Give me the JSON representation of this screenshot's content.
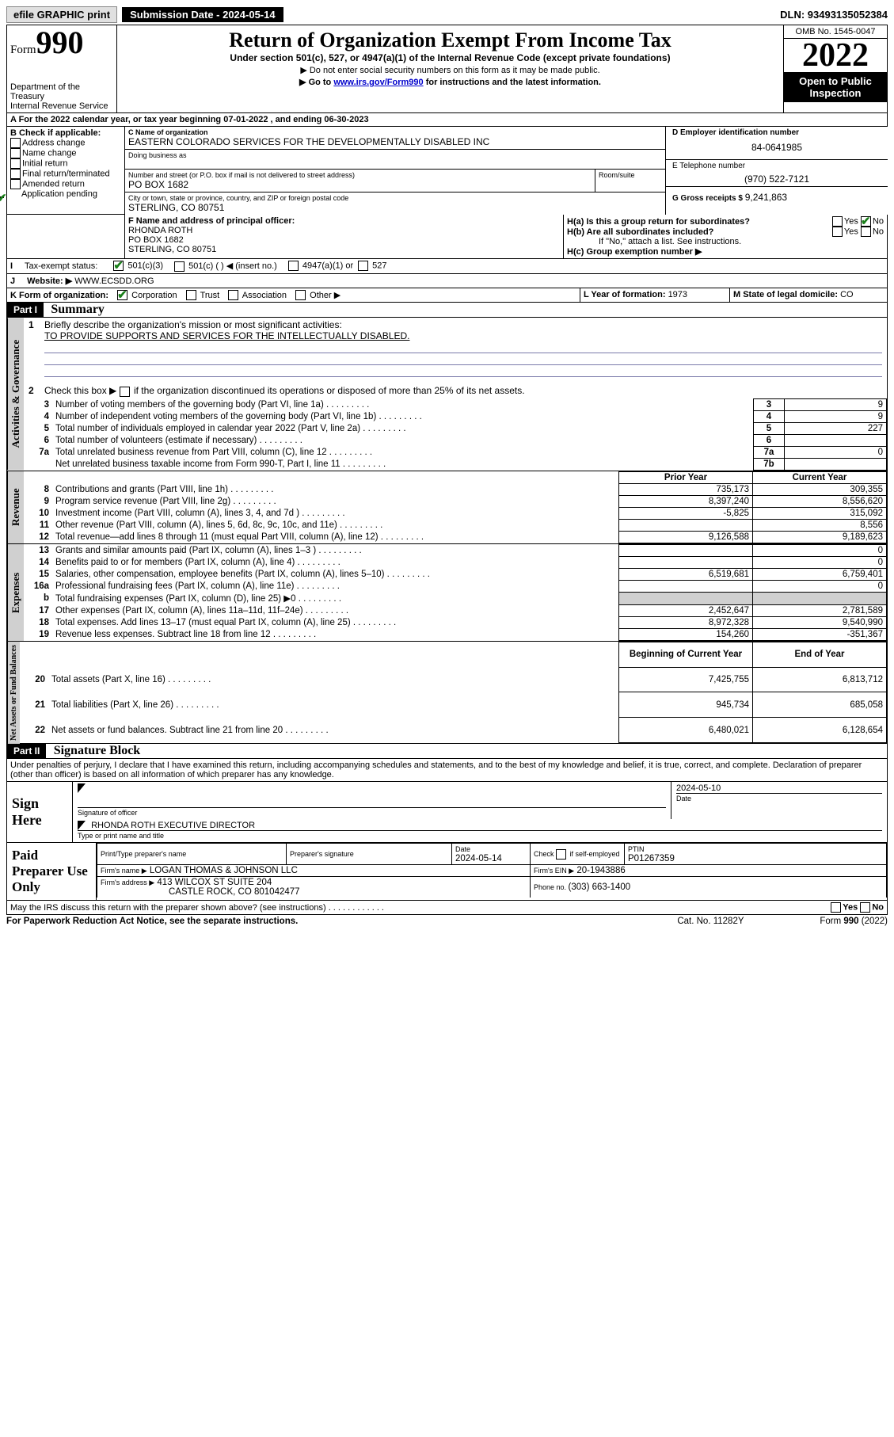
{
  "topbar": {
    "efile_label": "efile GRAPHIC print",
    "submission_label": "Submission Date - 2024-05-14",
    "dln_label": "DLN: 93493135052384"
  },
  "header": {
    "form_prefix": "Form",
    "form_number": "990",
    "title": "Return of Organization Exempt From Income Tax",
    "subtitle": "Under section 501(c), 527, or 4947(a)(1) of the Internal Revenue Code (except private foundations)",
    "note1": "▶ Do not enter social security numbers on this form as it may be made public.",
    "note2_pre": "▶ Go to ",
    "note2_link": "www.irs.gov/Form990",
    "note2_post": " for instructions and the latest information.",
    "dept": "Department of the Treasury",
    "irs": "Internal Revenue Service",
    "omb": "OMB No. 1545-0047",
    "year": "2022",
    "open": "Open to Public Inspection"
  },
  "A": {
    "label": "A For the 2022 calendar year, or tax year beginning ",
    "begin": "07-01-2022",
    "mid": " , and ending ",
    "end": "06-30-2023"
  },
  "B": {
    "label": "B Check if applicable:",
    "addr": "Address change",
    "name": "Name change",
    "init": "Initial return",
    "final": "Final return/terminated",
    "amend": "Amended return",
    "app": "Application pending"
  },
  "C": {
    "name_label": "C Name of organization",
    "name": "EASTERN COLORADO SERVICES FOR THE DEVELOPMENTALLY DISABLED INC",
    "dba_label": "Doing business as",
    "street_label": "Number and street (or P.O. box if mail is not delivered to street address)",
    "room_label": "Room/suite",
    "street": "PO BOX 1682",
    "city_label": "City or town, state or province, country, and ZIP or foreign postal code",
    "city": "STERLING, CO  80751"
  },
  "D": {
    "label": "D Employer identification number",
    "value": "84-0641985"
  },
  "E": {
    "label": "E Telephone number",
    "value": "(970) 522-7121"
  },
  "G": {
    "label": "G Gross receipts $ ",
    "value": "9,241,863"
  },
  "F": {
    "label": "F Name and address of principal officer:",
    "name": "RHONDA ROTH",
    "addr1": "PO BOX 1682",
    "addr2": "STERLING, CO  80751"
  },
  "H": {
    "a": "H(a)  Is this a group return for subordinates?",
    "b": "H(b)  Are all subordinates included?",
    "note": "If \"No,\" attach a list. See instructions.",
    "c": "H(c)  Group exemption number ▶",
    "yes": "Yes",
    "no": "No"
  },
  "I": {
    "label": "I",
    "text": "Tax-exempt status:",
    "c3": "501(c)(3)",
    "c": "501(c) (   ) ◀ (insert no.)",
    "a1": "4947(a)(1) or",
    "s527": "527"
  },
  "J": {
    "label": "J",
    "text": "Website: ▶",
    "value": "WWW.ECSDD.ORG"
  },
  "K": {
    "label": "K Form of organization:",
    "corp": "Corporation",
    "trust": "Trust",
    "assoc": "Association",
    "other": "Other ▶"
  },
  "L": {
    "label": "L Year of formation: ",
    "value": "1973"
  },
  "M": {
    "label": "M State of legal domicile: ",
    "value": "CO"
  },
  "part1": {
    "hdr": "Part I",
    "title": "Summary"
  },
  "summary": {
    "q1": "Briefly describe the organization's mission or most significant activities:",
    "mission": "TO PROVIDE SUPPORTS AND SERVICES FOR THE INTELLECTUALLY DISABLED.",
    "q2": "Check this box ▶        if the organization discontinued its operations or disposed of more than 25% of its net assets.",
    "rows_gov": [
      {
        "n": "3",
        "t": "Number of voting members of the governing body (Part VI, line 1a)",
        "box": "3",
        "v": "9"
      },
      {
        "n": "4",
        "t": "Number of independent voting members of the governing body (Part VI, line 1b)",
        "box": "4",
        "v": "9"
      },
      {
        "n": "5",
        "t": "Total number of individuals employed in calendar year 2022 (Part V, line 2a)",
        "box": "5",
        "v": "227"
      },
      {
        "n": "6",
        "t": "Total number of volunteers (estimate if necessary)",
        "box": "6",
        "v": ""
      },
      {
        "n": "7a",
        "t": "Total unrelated business revenue from Part VIII, column (C), line 12",
        "box": "7a",
        "v": "0"
      },
      {
        "n": "",
        "t": "Net unrelated business taxable income from Form 990-T, Part I, line 11",
        "box": "7b",
        "v": ""
      }
    ],
    "col_prior": "Prior Year",
    "col_current": "Current Year",
    "rev": [
      {
        "n": "8",
        "t": "Contributions and grants (Part VIII, line 1h)",
        "p": "735,173",
        "c": "309,355"
      },
      {
        "n": "9",
        "t": "Program service revenue (Part VIII, line 2g)",
        "p": "8,397,240",
        "c": "8,556,620"
      },
      {
        "n": "10",
        "t": "Investment income (Part VIII, column (A), lines 3, 4, and 7d )",
        "p": "-5,825",
        "c": "315,092"
      },
      {
        "n": "11",
        "t": "Other revenue (Part VIII, column (A), lines 5, 6d, 8c, 9c, 10c, and 11e)",
        "p": "",
        "c": "8,556"
      },
      {
        "n": "12",
        "t": "Total revenue—add lines 8 through 11 (must equal Part VIII, column (A), line 12)",
        "p": "9,126,588",
        "c": "9,189,623"
      }
    ],
    "exp": [
      {
        "n": "13",
        "t": "Grants and similar amounts paid (Part IX, column (A), lines 1–3 )",
        "p": "",
        "c": "0"
      },
      {
        "n": "14",
        "t": "Benefits paid to or for members (Part IX, column (A), line 4)",
        "p": "",
        "c": "0"
      },
      {
        "n": "15",
        "t": "Salaries, other compensation, employee benefits (Part IX, column (A), lines 5–10)",
        "p": "6,519,681",
        "c": "6,759,401"
      },
      {
        "n": "16a",
        "t": "Professional fundraising fees (Part IX, column (A), line 11e)",
        "p": "",
        "c": "0"
      },
      {
        "n": "b",
        "t": "Total fundraising expenses (Part IX, column (D), line 25) ▶0",
        "p": "GRAY",
        "c": "GRAY"
      },
      {
        "n": "17",
        "t": "Other expenses (Part IX, column (A), lines 11a–11d, 11f–24e)",
        "p": "2,452,647",
        "c": "2,781,589"
      },
      {
        "n": "18",
        "t": "Total expenses. Add lines 13–17 (must equal Part IX, column (A), line 25)",
        "p": "8,972,328",
        "c": "9,540,990"
      },
      {
        "n": "19",
        "t": "Revenue less expenses. Subtract line 18 from line 12",
        "p": "154,260",
        "c": "-351,367"
      }
    ],
    "col_begin": "Beginning of Current Year",
    "col_end": "End of Year",
    "net": [
      {
        "n": "20",
        "t": "Total assets (Part X, line 16)",
        "p": "7,425,755",
        "c": "6,813,712"
      },
      {
        "n": "21",
        "t": "Total liabilities (Part X, line 26)",
        "p": "945,734",
        "c": "685,058"
      },
      {
        "n": "22",
        "t": "Net assets or fund balances. Subtract line 21 from line 20",
        "p": "6,480,021",
        "c": "6,128,654"
      }
    ],
    "vlabels": {
      "gov": "Activities & Governance",
      "rev": "Revenue",
      "exp": "Expenses",
      "net": "Net Assets or Fund Balances"
    }
  },
  "part2": {
    "hdr": "Part II",
    "title": "Signature Block"
  },
  "sig": {
    "decl": "Under penalties of perjury, I declare that I have examined this return, including accompanying schedules and statements, and to the best of my knowledge and belief, it is true, correct, and complete. Declaration of preparer (other than officer) is based on all information of which preparer has any knowledge.",
    "sign_here": "Sign Here",
    "sig_officer": "Signature of officer",
    "date": "Date",
    "date_val": "2024-05-10",
    "name_title": "RHONDA ROTH  EXECUTIVE DIRECTOR",
    "type_label": "Type or print name and title",
    "paid": "Paid Preparer Use Only",
    "prep_name_lbl": "Print/Type preparer's name",
    "prep_sig_lbl": "Preparer's signature",
    "prep_date_lbl": "Date",
    "prep_date": "2024-05-14",
    "check": "Check         if self-employed",
    "ptin_lbl": "PTIN",
    "ptin": "P01267359",
    "firm_name_lbl": "Firm's name     ▶",
    "firm_name": "LOGAN THOMAS & JOHNSON LLC",
    "firm_ein_lbl": "Firm's EIN ▶",
    "firm_ein": "20-1943886",
    "firm_addr_lbl": "Firm's address ▶",
    "firm_addr1": "413 WILCOX ST SUITE 204",
    "firm_addr2": "CASTLE ROCK, CO  801042477",
    "phone_lbl": "Phone no. ",
    "phone": "(303) 663-1400",
    "discuss": "May the IRS discuss this return with the preparer shown above? (see instructions)",
    "yes": "Yes",
    "no": "No"
  },
  "footer": {
    "pra": "For Paperwork Reduction Act Notice, see the separate instructions.",
    "cat": "Cat. No. 11282Y",
    "form": "Form 990 (2022)"
  }
}
